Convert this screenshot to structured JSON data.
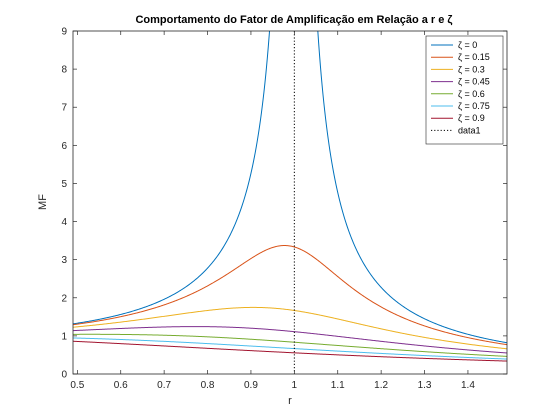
{
  "chart_data": {
    "type": "line",
    "title": "Comportamento do Fator de Amplificação em Relação a r e ζ",
    "xlabel": "r",
    "ylabel": "MF",
    "xlim": [
      0.49,
      1.49
    ],
    "ylim": [
      0,
      9
    ],
    "xticks": [
      "0.5",
      "0.6",
      "0.7",
      "0.8",
      "0.9",
      "1",
      "1.1",
      "1.2",
      "1.3",
      "1.4"
    ],
    "yticks": [
      "0",
      "1",
      "2",
      "3",
      "4",
      "5",
      "6",
      "7",
      "8",
      "9"
    ],
    "grid": false,
    "legend_position": "top-right",
    "series": [
      {
        "name": "ζ = 0",
        "zeta": 0,
        "color": "#0072BD",
        "style": "solid"
      },
      {
        "name": "ζ = 0.15",
        "zeta": 0.15,
        "color": "#D95319",
        "style": "solid"
      },
      {
        "name": "ζ = 0.3",
        "zeta": 0.3,
        "color": "#EDB120",
        "style": "solid"
      },
      {
        "name": "ζ = 0.45",
        "zeta": 0.45,
        "color": "#7E2F8E",
        "style": "solid"
      },
      {
        "name": "ζ = 0.6",
        "zeta": 0.6,
        "color": "#77AC30",
        "style": "solid"
      },
      {
        "name": "ζ = 0.75",
        "zeta": 0.75,
        "color": "#4DBEEE",
        "style": "solid"
      },
      {
        "name": "ζ = 0.9",
        "zeta": 0.9,
        "color": "#A2142F",
        "style": "solid"
      },
      {
        "name": "data1",
        "color": "#000000",
        "style": "dotted",
        "vertical_x": 1
      }
    ]
  }
}
